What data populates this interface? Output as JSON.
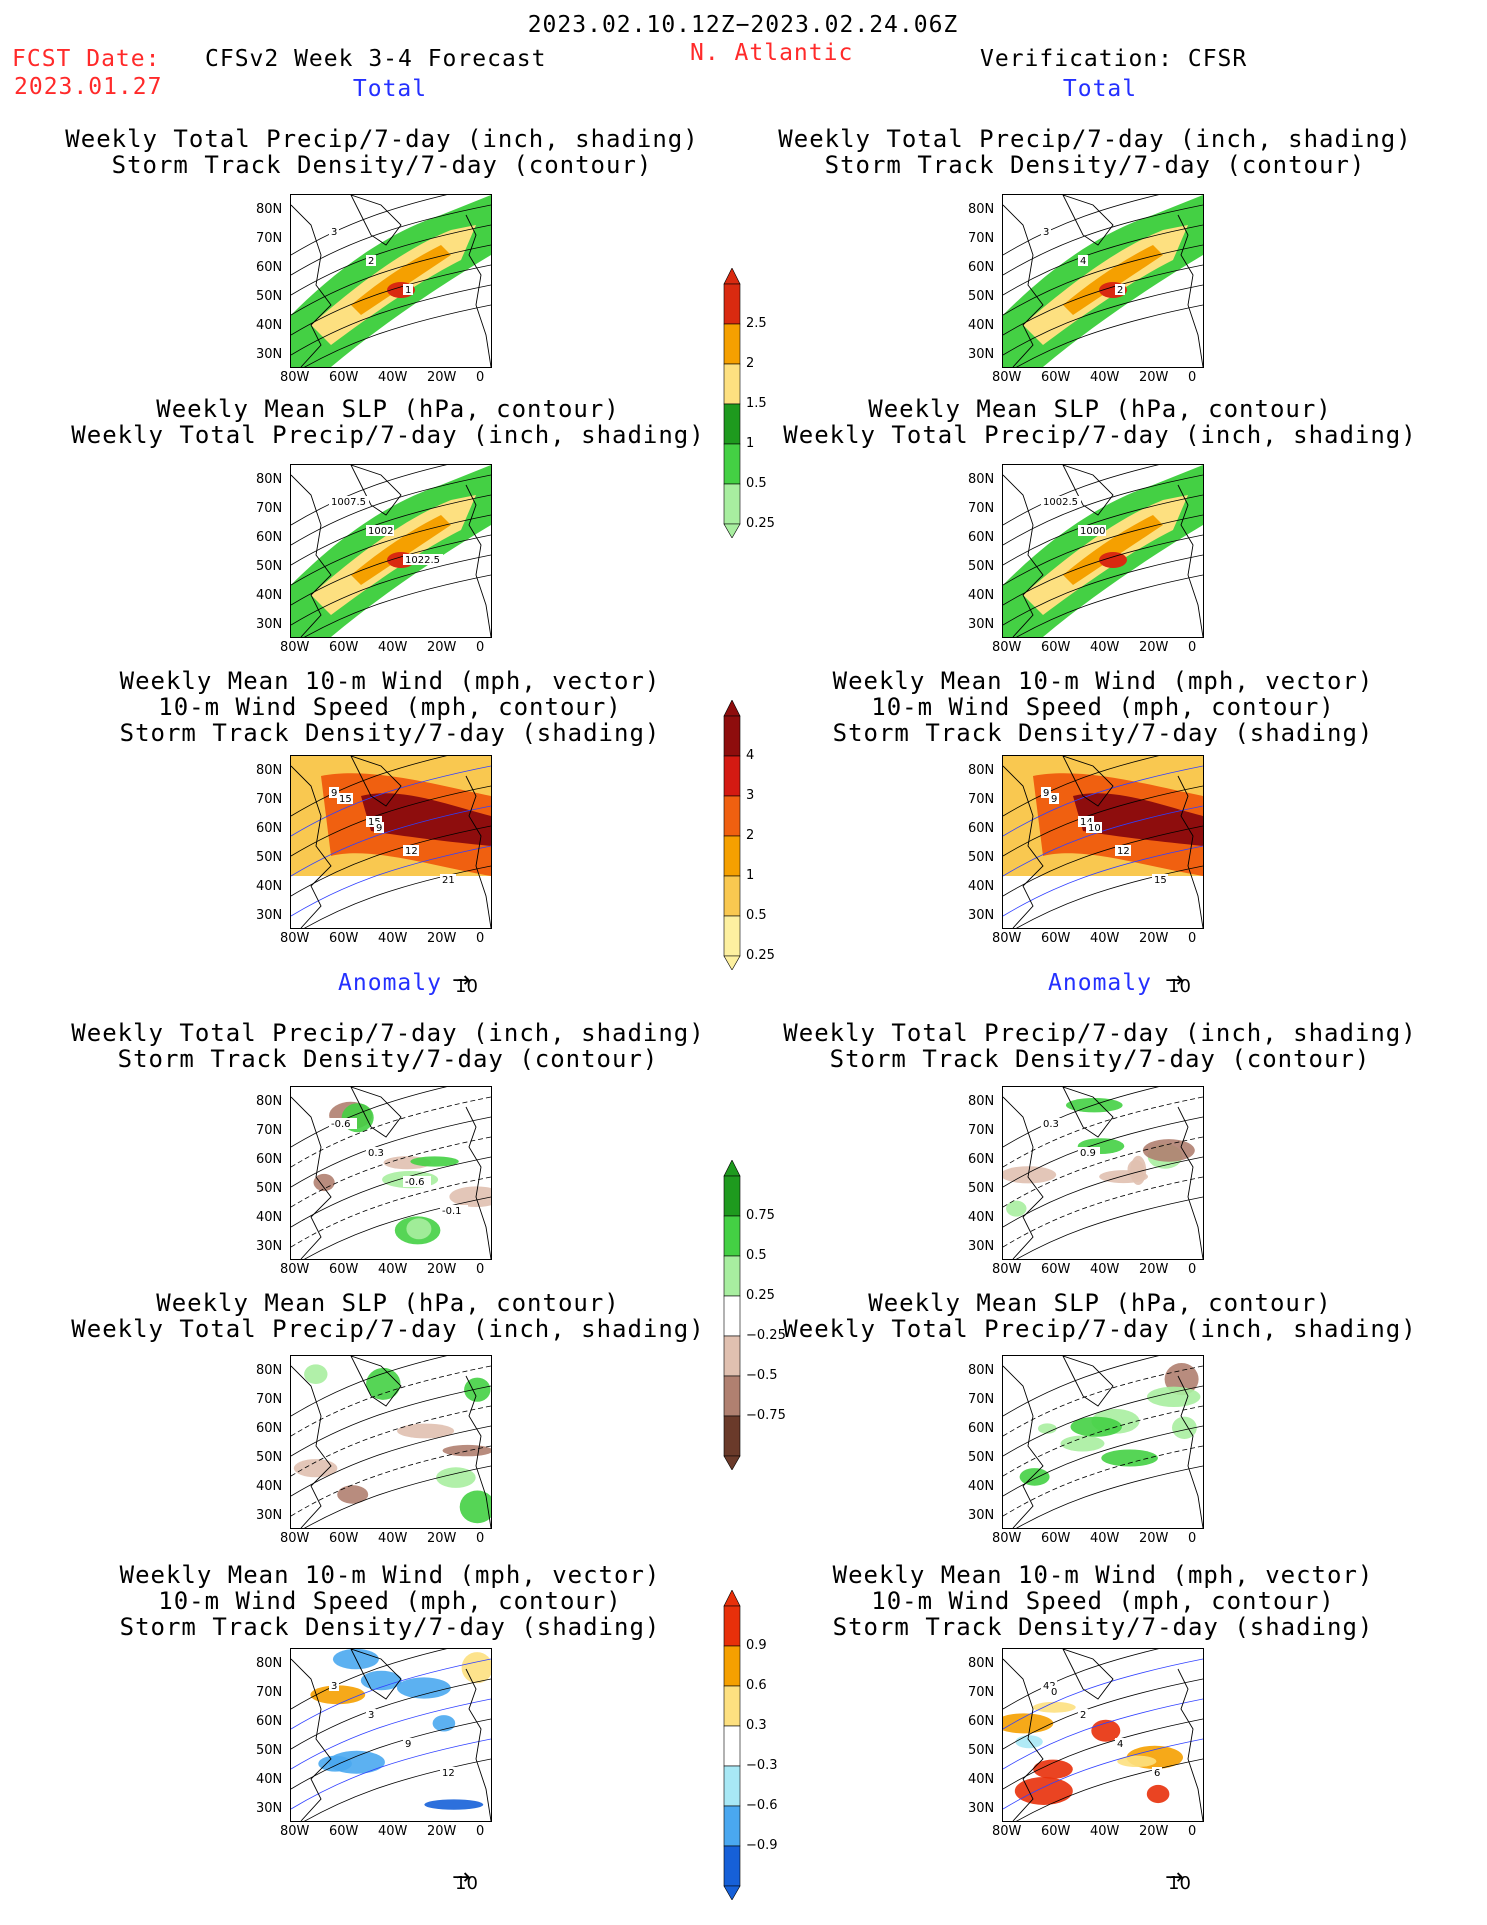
{
  "header": {
    "date_range": "2023.02.10.12Z−2023.02.24.06Z",
    "fcst_label": "FCST Date:",
    "fcst_date": "2023.01.27",
    "model": "CFSv2 Week 3-4 Forecast",
    "region": "N. Atlantic",
    "verification": "Verification: CFSR"
  },
  "section_labels": {
    "total": "Total",
    "anomaly": "Anomaly"
  },
  "panel_titles": {
    "precip_track": "Weekly Total Precip/7-day (inch, shading)\nStorm Track Density/7-day (contour)",
    "slp_precip": "Weekly Mean SLP (hPa, contour)\nWeekly Total Precip/7-day (inch, shading)",
    "wind_track": "Weekly Mean 10-m Wind (mph, vector)\n10-m Wind Speed (mph, contour)\nStorm Track Density/7-day (shading)"
  },
  "axes": {
    "lat_ticks": [
      "80N",
      "70N",
      "60N",
      "50N",
      "40N",
      "30N"
    ],
    "lon_ticks": [
      "80W",
      "60W",
      "40W",
      "20W",
      "0"
    ]
  },
  "vector_ref": "10",
  "colorbars": {
    "precip_total": {
      "labels": [
        "2.5",
        "2",
        "1.5",
        "1",
        "0.5",
        "0.25"
      ],
      "colors": [
        "#d92a10",
        "#f5a000",
        "#fde080",
        "#1e9a1e",
        "#44d044",
        "#a8eea0"
      ]
    },
    "track_total": {
      "labels": [
        "4",
        "3",
        "2",
        "1",
        "0.5",
        "0.25"
      ],
      "colors": [
        "#8e0d0d",
        "#d41a12",
        "#f06010",
        "#f5a000",
        "#f9c850",
        "#fdf0a0"
      ]
    },
    "precip_anom": {
      "labels": [
        "0.75",
        "0.5",
        "0.25",
        "−0.25",
        "−0.5",
        "−0.75"
      ],
      "colors": [
        "#1e9a1e",
        "#44d044",
        "#a8eea0",
        "#ffffff",
        "#e0c0b0",
        "#b08070",
        "#6a3a2a"
      ]
    },
    "track_anom": {
      "labels": [
        "0.9",
        "0.6",
        "0.3",
        "−0.3",
        "−0.6",
        "−0.9"
      ],
      "colors": [
        "#e8300a",
        "#f5a000",
        "#fde080",
        "#ffffff",
        "#a8e8f5",
        "#4aa8f0",
        "#1660d8"
      ]
    }
  },
  "map_labels": {
    "l1": [
      "3",
      "2",
      "1"
    ],
    "r1": [
      "3",
      "4",
      "2"
    ],
    "l2": [
      "1007.5",
      "1002",
      "1022.5"
    ],
    "r2": [
      "1002.5",
      "1000"
    ],
    "l3": [
      "9",
      "15",
      "12",
      "21",
      "15",
      "9"
    ],
    "r3": [
      "9",
      "14",
      "12",
      "15",
      "9",
      "10"
    ],
    "l4": [
      "-0.6",
      "0.3",
      "-0.6",
      "-0.1"
    ],
    "r4": [
      "0.3",
      "0.9"
    ],
    "l6": [
      "3",
      "3",
      "9",
      "12"
    ],
    "r6": [
      "42",
      "2",
      "4",
      "6",
      "0"
    ]
  }
}
